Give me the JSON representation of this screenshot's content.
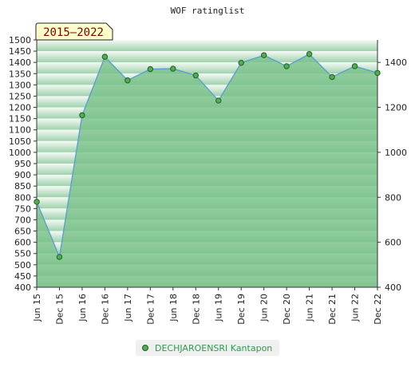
{
  "chart_data": {
    "type": "area",
    "title": "WOF ratinglist",
    "period_badge": "2015–2022",
    "categories": [
      "Jun 15",
      "Dec 15",
      "Jun 16",
      "Dec 16",
      "Jun 17",
      "Dec 17",
      "Jun 18",
      "Dec 18",
      "Jun 19",
      "Dec 19",
      "Jun 20",
      "Dec 20",
      "Jun 21",
      "Dec 21",
      "Jun 22",
      "Dec 22"
    ],
    "series": [
      {
        "name": "DECHJAROENSRI Kantapon",
        "values": [
          780,
          535,
          1165,
          1425,
          1320,
          1370,
          1372,
          1342,
          1230,
          1398,
          1432,
          1383,
          1437,
          1335,
          1383,
          1353
        ]
      }
    ],
    "y_left": {
      "min": 400,
      "max": 1500,
      "step": 50
    },
    "y_right": {
      "min": 400,
      "max": 1500,
      "ticks": [
        400,
        600,
        800,
        1000,
        1200,
        1400
      ]
    },
    "grid": true,
    "legend_position": "bottom",
    "colors": {
      "line": "#5b9bd5",
      "marker": "#4caf50",
      "fill_light": "#a8d8b4",
      "fill_dark": "#78c088",
      "badge_bg": "#ffffcc",
      "legend_text": "#2e9a4e"
    }
  }
}
